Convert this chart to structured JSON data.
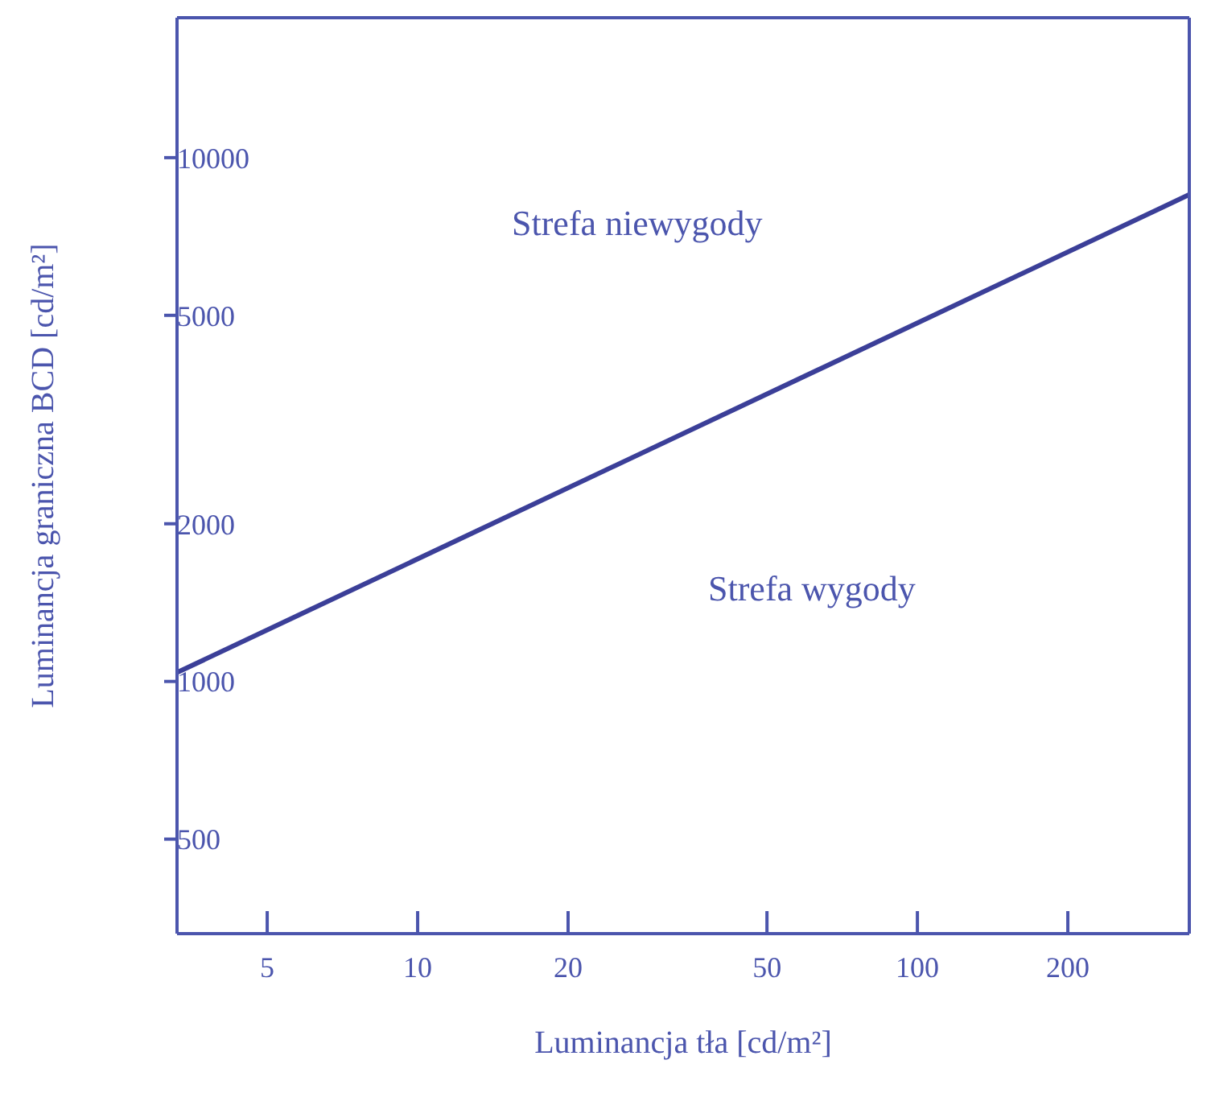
{
  "chart_data": {
    "type": "line",
    "xlabel": "Luminancja tła [cd/m²]",
    "ylabel": "Luminancja graniczna BCD [cd/m²]",
    "log": "xy",
    "xlim": [
      3.3,
      350
    ],
    "xticks": [
      5,
      10,
      20,
      50,
      100,
      200
    ],
    "ylim": [
      330,
      18500
    ],
    "yticks": [
      500,
      1000,
      2000,
      5000,
      10000
    ],
    "marker": "none",
    "line_style": "solid",
    "series": [
      {
        "color": "#3b3f98",
        "x": [
          3.3,
          350
        ],
        "values": [
          1040,
          8500
        ]
      }
    ],
    "annotations": [
      "Strefa niewygody",
      "Strefa wygody"
    ]
  }
}
